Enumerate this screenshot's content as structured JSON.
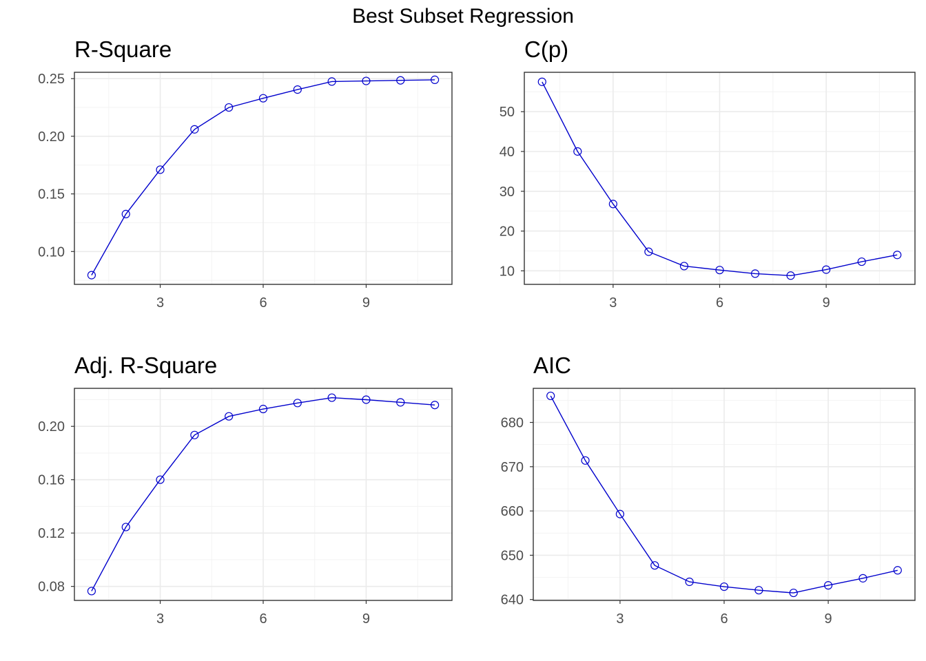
{
  "title": "Best Subset Regression",
  "colors": {
    "line": "#0000cc",
    "point": "#0000cc",
    "frame": "#333333",
    "grid": "#ebebeb"
  },
  "chart_data": [
    {
      "type": "line",
      "title": "R-Square",
      "x": [
        1,
        2,
        3,
        4,
        5,
        6,
        7,
        8,
        9,
        10,
        11
      ],
      "values": [
        0.0795,
        0.1325,
        0.171,
        0.206,
        0.225,
        0.233,
        0.2405,
        0.2475,
        0.248,
        0.2485,
        0.249
      ],
      "xlim": [
        0.5,
        11.5
      ],
      "ylim": [
        0.0715,
        0.2555
      ],
      "xticks": [
        3,
        6,
        9
      ],
      "xtick_labels": [
        "3",
        "6",
        "9"
      ],
      "yticks": [
        0.1,
        0.15,
        0.2,
        0.25
      ],
      "ytick_labels": [
        "0.10",
        "0.15",
        "0.20",
        "0.25"
      ],
      "xminor": [
        1.5,
        4.5,
        7.5,
        10.5
      ],
      "yminor": [
        0.075,
        0.125,
        0.175,
        0.225
      ],
      "grid": true
    },
    {
      "type": "line",
      "title": "C(p)",
      "x": [
        1,
        2,
        3,
        4,
        5,
        6,
        7,
        8,
        9,
        10,
        11
      ],
      "values": [
        57.5,
        40.0,
        26.8,
        14.8,
        11.2,
        10.2,
        9.3,
        8.8,
        10.3,
        12.3,
        14.0
      ],
      "xlim": [
        0.5,
        11.5
      ],
      "ylim": [
        6.6,
        59.9
      ],
      "xticks": [
        3,
        6,
        9
      ],
      "xtick_labels": [
        "3",
        "6",
        "9"
      ],
      "yticks": [
        10,
        20,
        30,
        40,
        50
      ],
      "ytick_labels": [
        "10",
        "20",
        "30",
        "40",
        "50"
      ],
      "xminor": [
        1.5,
        4.5,
        7.5,
        10.5
      ],
      "yminor": [
        15,
        25,
        35,
        45,
        55
      ],
      "grid": true
    },
    {
      "type": "line",
      "title": "Adj. R-Square",
      "x": [
        1,
        2,
        3,
        4,
        5,
        6,
        7,
        8,
        9,
        10,
        11
      ],
      "values": [
        0.0765,
        0.1245,
        0.16,
        0.1935,
        0.2075,
        0.213,
        0.2175,
        0.2215,
        0.22,
        0.218,
        0.216
      ],
      "xlim": [
        0.5,
        11.5
      ],
      "ylim": [
        0.0695,
        0.2285
      ],
      "xticks": [
        3,
        6,
        9
      ],
      "xtick_labels": [
        "3",
        "6",
        "9"
      ],
      "yticks": [
        0.08,
        0.12,
        0.16,
        0.2
      ],
      "ytick_labels": [
        "0.08",
        "0.12",
        "0.16",
        "0.20"
      ],
      "xminor": [
        1.5,
        4.5,
        7.5,
        10.5
      ],
      "yminor": [
        0.1,
        0.14,
        0.18,
        0.22
      ],
      "grid": true
    },
    {
      "type": "line",
      "title": "AIC",
      "x": [
        1,
        2,
        3,
        4,
        5,
        6,
        7,
        8,
        9,
        10,
        11
      ],
      "values": [
        686.0,
        671.4,
        659.3,
        647.7,
        644.0,
        642.9,
        642.1,
        641.5,
        643.2,
        644.8,
        646.6
      ],
      "xlim": [
        0.5,
        11.5
      ],
      "ylim": [
        639.8,
        687.7
      ],
      "xticks": [
        3,
        6,
        9
      ],
      "xtick_labels": [
        "3",
        "6",
        "9"
      ],
      "yticks": [
        640,
        650,
        660,
        670,
        680
      ],
      "ytick_labels": [
        "640",
        "650",
        "660",
        "670",
        "680"
      ],
      "xminor": [
        1.5,
        4.5,
        7.5,
        10.5
      ],
      "yminor": [
        645,
        655,
        665,
        675,
        685
      ],
      "grid": true
    }
  ]
}
